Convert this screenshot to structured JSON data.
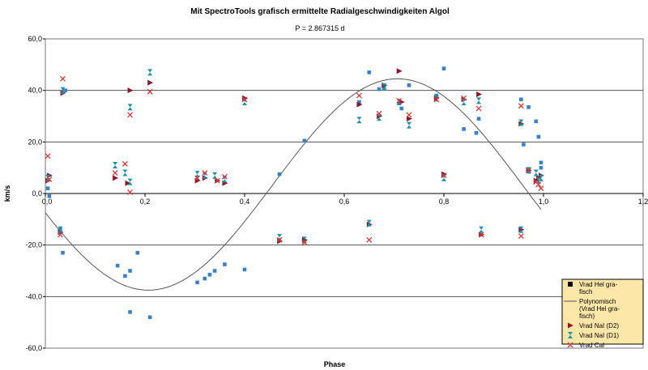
{
  "chart_data": {
    "type": "scatter",
    "title": "Mit SpectroTools grafisch ermittelte Radialgeschwindigkeiten Algol",
    "subtitle": "P = 2.867315 d",
    "xlabel": "Phase",
    "ylabel": "km/s",
    "xlim": [
      0,
      1.2
    ],
    "ylim": [
      -60,
      60
    ],
    "x_ticks": [
      "0,0",
      "0,2",
      "0,4",
      "0,6",
      "0,8",
      "1,0",
      "1,2"
    ],
    "y_ticks": [
      "60,0",
      "40,0",
      "20,0",
      "0,0",
      "-20,0",
      "-40,0",
      "-60,0"
    ],
    "y_tick_values": [
      60,
      40,
      20,
      0,
      -20,
      -40,
      -60
    ],
    "x_tick_values": [
      0,
      0.2,
      0.4,
      0.6,
      0.8,
      1.0,
      1.2
    ],
    "grid": "horizontal",
    "legend_position": "bottom-right",
    "colors": {
      "blue": "#3c80c4",
      "darkred": "#8b1a2e",
      "teal": "#1e8fa8",
      "red": "#d23a3a",
      "curve": "#555555",
      "legend_bg": "#fde7a8",
      "grid": "#555555"
    },
    "series": [
      {
        "name": "Vrad Hel grafisch",
        "marker": "square",
        "points": [
          [
            0.005,
            2
          ],
          [
            0.008,
            -1
          ],
          [
            0.03,
            -14
          ],
          [
            0.035,
            -23
          ],
          [
            0.04,
            40
          ],
          [
            0.145,
            -28
          ],
          [
            0.16,
            -32
          ],
          [
            0.17,
            -30
          ],
          [
            0.17,
            -46
          ],
          [
            0.185,
            -23
          ],
          [
            0.21,
            -48
          ],
          [
            0.305,
            -34.5
          ],
          [
            0.32,
            -33
          ],
          [
            0.33,
            -31.5
          ],
          [
            0.34,
            -30
          ],
          [
            0.36,
            -27.5
          ],
          [
            0.4,
            -29.5
          ],
          [
            0.47,
            7.5
          ],
          [
            0.52,
            20.5
          ],
          [
            0.63,
            35.5
          ],
          [
            0.65,
            47
          ],
          [
            0.67,
            40.5
          ],
          [
            0.68,
            41
          ],
          [
            0.71,
            35
          ],
          [
            0.715,
            33
          ],
          [
            0.73,
            42
          ],
          [
            0.785,
            38
          ],
          [
            0.8,
            48.5
          ],
          [
            0.84,
            25
          ],
          [
            0.865,
            23.5
          ],
          [
            0.87,
            29
          ],
          [
            0.955,
            36.5
          ],
          [
            0.96,
            19
          ],
          [
            0.97,
            33.5
          ],
          [
            0.985,
            28
          ],
          [
            0.99,
            22
          ],
          [
            0.995,
            12
          ],
          [
            0.995,
            10
          ]
        ]
      },
      {
        "name": "Polynomisch (Vrad Hel grafisch)",
        "marker": "curve",
        "fit": {
          "a": 41,
          "phase_min": 0.207,
          "offset": 3.5,
          "x_range": [
            0,
            0.995
          ]
        }
      },
      {
        "name": "Vrad NaI (D2)",
        "marker": "triangle",
        "points": [
          [
            0.005,
            5
          ],
          [
            0.008,
            7
          ],
          [
            0.03,
            -15
          ],
          [
            0.035,
            39
          ],
          [
            0.14,
            6
          ],
          [
            0.165,
            4
          ],
          [
            0.17,
            40
          ],
          [
            0.21,
            43
          ],
          [
            0.305,
            5
          ],
          [
            0.32,
            6
          ],
          [
            0.345,
            5
          ],
          [
            0.36,
            4
          ],
          [
            0.4,
            37
          ],
          [
            0.47,
            -18.5
          ],
          [
            0.52,
            -18
          ],
          [
            0.63,
            34.5
          ],
          [
            0.65,
            -12
          ],
          [
            0.67,
            30
          ],
          [
            0.68,
            42
          ],
          [
            0.71,
            47.5
          ],
          [
            0.715,
            35.5
          ],
          [
            0.73,
            29
          ],
          [
            0.785,
            37
          ],
          [
            0.8,
            7.5
          ],
          [
            0.84,
            36.5
          ],
          [
            0.87,
            38.5
          ],
          [
            0.875,
            -16
          ],
          [
            0.955,
            27
          ],
          [
            0.955,
            -14
          ],
          [
            0.97,
            9
          ],
          [
            0.985,
            5
          ],
          [
            0.99,
            6
          ],
          [
            0.995,
            7
          ]
        ]
      },
      {
        "name": "Vrad NaI (D1)",
        "marker": "hourglass",
        "points": [
          [
            0.005,
            6
          ],
          [
            0.03,
            -14
          ],
          [
            0.035,
            40
          ],
          [
            0.14,
            11
          ],
          [
            0.16,
            8
          ],
          [
            0.17,
            4.5
          ],
          [
            0.17,
            33.5
          ],
          [
            0.21,
            47
          ],
          [
            0.305,
            7.5
          ],
          [
            0.32,
            7
          ],
          [
            0.34,
            7
          ],
          [
            0.36,
            5.5
          ],
          [
            0.4,
            35.5
          ],
          [
            0.47,
            -17
          ],
          [
            0.52,
            -18
          ],
          [
            0.63,
            28.5
          ],
          [
            0.65,
            -11.5
          ],
          [
            0.67,
            29.5
          ],
          [
            0.68,
            41.5
          ],
          [
            0.71,
            35.5
          ],
          [
            0.73,
            26.5
          ],
          [
            0.785,
            37
          ],
          [
            0.8,
            6
          ],
          [
            0.84,
            35.5
          ],
          [
            0.87,
            36
          ],
          [
            0.875,
            -14
          ],
          [
            0.955,
            27.5
          ],
          [
            0.955,
            -14
          ],
          [
            0.97,
            9
          ],
          [
            0.985,
            8
          ],
          [
            0.99,
            5
          ],
          [
            0.995,
            6
          ]
        ]
      },
      {
        "name": "Vrad CaI",
        "marker": "x",
        "points": [
          [
            0.005,
            14.5
          ],
          [
            0.008,
            5.5
          ],
          [
            0.03,
            -16
          ],
          [
            0.035,
            44.5
          ],
          [
            0.14,
            8
          ],
          [
            0.16,
            11.5
          ],
          [
            0.17,
            0.5
          ],
          [
            0.17,
            30.5
          ],
          [
            0.21,
            39.5
          ],
          [
            0.305,
            6
          ],
          [
            0.32,
            8
          ],
          [
            0.345,
            5
          ],
          [
            0.36,
            6.5
          ],
          [
            0.4,
            36.5
          ],
          [
            0.47,
            -18
          ],
          [
            0.52,
            -19
          ],
          [
            0.63,
            38
          ],
          [
            0.65,
            -18
          ],
          [
            0.67,
            31
          ],
          [
            0.71,
            36
          ],
          [
            0.73,
            30.5
          ],
          [
            0.785,
            36.5
          ],
          [
            0.8,
            7
          ],
          [
            0.84,
            37
          ],
          [
            0.87,
            33
          ],
          [
            0.875,
            -16
          ],
          [
            0.955,
            34
          ],
          [
            0.955,
            -16.5
          ],
          [
            0.97,
            9
          ],
          [
            0.985,
            4.5
          ],
          [
            0.99,
            3.5
          ],
          [
            0.995,
            2
          ]
        ]
      }
    ],
    "legend": [
      {
        "marker": "square",
        "lines": [
          "Vrad Hel gra-",
          "fisch"
        ]
      },
      {
        "marker": "curve",
        "lines": [
          "Polynomisch",
          "(Vrad Hel gra-",
          "fisch)"
        ]
      },
      {
        "marker": "triangle",
        "lines": [
          "Vrad NaI (D2)"
        ]
      },
      {
        "marker": "hourglass",
        "lines": [
          "Vrad NaI (D1)"
        ]
      },
      {
        "marker": "x",
        "lines": [
          "Vrad CaI"
        ]
      }
    ]
  }
}
